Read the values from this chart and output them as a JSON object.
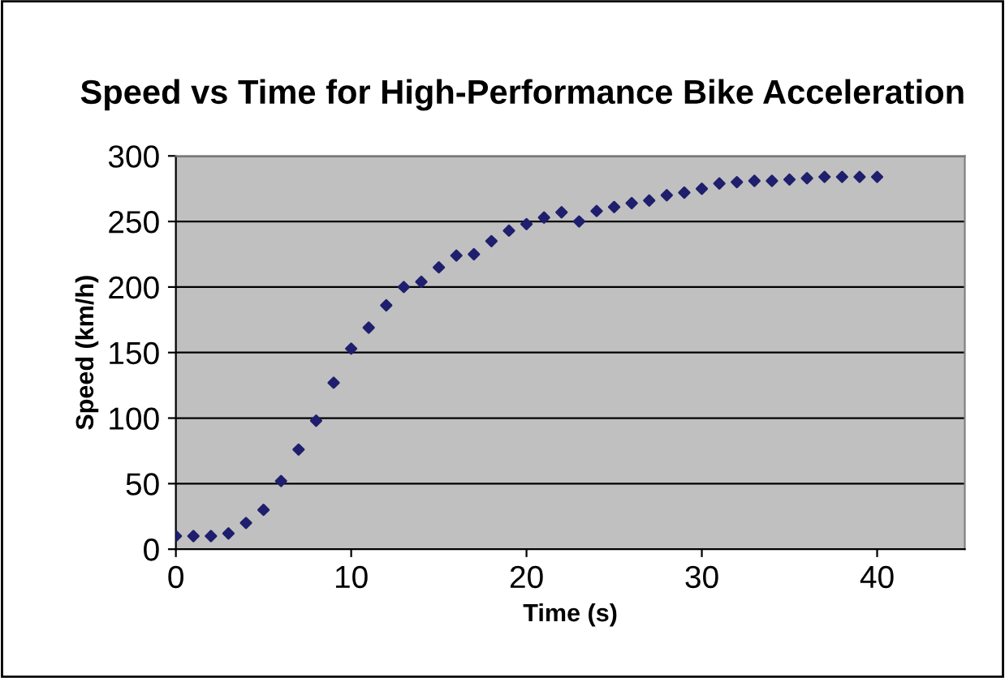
{
  "chart_data": {
    "type": "scatter",
    "title": "Speed vs Time for High-Performance Bike Acceleration",
    "xlabel": "Time (s)",
    "ylabel": "Speed (km/h)",
    "x": [
      0,
      1,
      2,
      3,
      4,
      5,
      6,
      7,
      8,
      9,
      10,
      11,
      12,
      13,
      14,
      15,
      16,
      17,
      18,
      19,
      20,
      21,
      22,
      23,
      24,
      25,
      26,
      27,
      28,
      29,
      30,
      31,
      32,
      33,
      34,
      35,
      36,
      37,
      38,
      39,
      40
    ],
    "series": [
      {
        "color": "#1f1f6e",
        "values": [
          10,
          10,
          10,
          12,
          20,
          30,
          52,
          76,
          98,
          127,
          153,
          169,
          186,
          200,
          204,
          215,
          224,
          225,
          235,
          243,
          248,
          253,
          257,
          250,
          258,
          261,
          264,
          266,
          270,
          272,
          275,
          279,
          280,
          281,
          281,
          282,
          283,
          284,
          284,
          284,
          284
        ]
      }
    ],
    "xlim": [
      0,
      45
    ],
    "xticks": [
      0,
      10,
      20,
      30,
      40
    ],
    "ylim": [
      0,
      300
    ],
    "yticks": [
      0,
      50,
      100,
      150,
      200,
      250,
      300
    ],
    "grid": "y",
    "marker": "diamond"
  }
}
